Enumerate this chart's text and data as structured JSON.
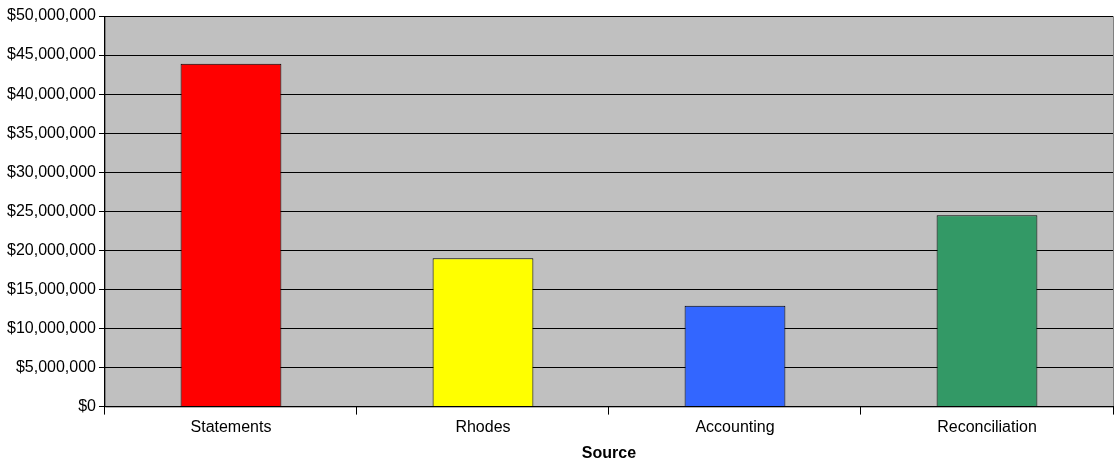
{
  "chart_data": {
    "type": "bar",
    "xlabel": "Source",
    "categories": [
      "Statements",
      "Rhodes",
      "Accounting",
      "Reconciliation"
    ],
    "values": [
      43900000,
      19000000,
      12900000,
      24500000
    ],
    "colors": [
      "#ff0000",
      "#ffff00",
      "#3366ff",
      "#339966"
    ],
    "ylim": [
      0,
      50000000
    ],
    "yticks": [
      {
        "value": 0,
        "label": "$0"
      },
      {
        "value": 5000000,
        "label": "$5,000,000"
      },
      {
        "value": 10000000,
        "label": "$10,000,000"
      },
      {
        "value": 15000000,
        "label": "$15,000,000"
      },
      {
        "value": 20000000,
        "label": "$20,000,000"
      },
      {
        "value": 25000000,
        "label": "$25,000,000"
      },
      {
        "value": 30000000,
        "label": "$30,000,000"
      },
      {
        "value": 35000000,
        "label": "$35,000,000"
      },
      {
        "value": 40000000,
        "label": "$40,000,000"
      },
      {
        "value": 45000000,
        "label": "$45,000,000"
      },
      {
        "value": 50000000,
        "label": "$50,000,000"
      }
    ],
    "grid": "y",
    "legend": false
  }
}
